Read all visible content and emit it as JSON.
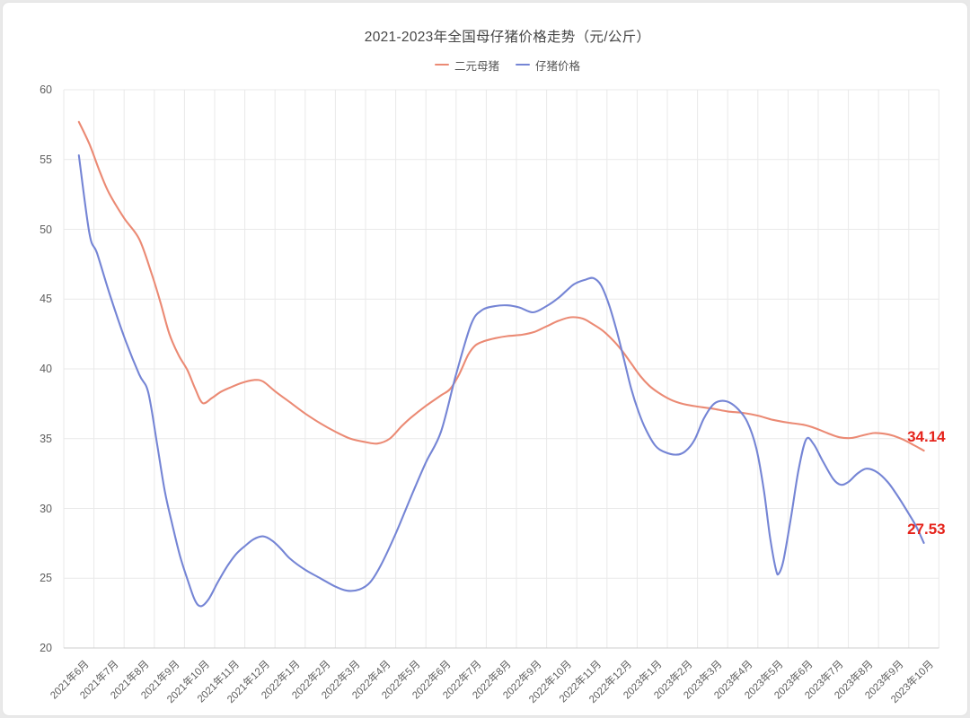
{
  "title": "2021-2023年全国母仔猪价格走势（元/公斤）",
  "colors": {
    "page_background": "#e9e9e9",
    "card_background": "#ffffff",
    "grid_line": "#e9e9e9",
    "axis_line": "#cccccc",
    "tick_text": "#5e5e5e",
    "title_text": "#464646",
    "end_label_text": "#e5231b",
    "series_sow": "#eb8a74",
    "series_piglet": "#7585d5"
  },
  "legend": {
    "items": [
      {
        "label": "二元母猪",
        "color": "#eb8a74"
      },
      {
        "label": "仔猪价格",
        "color": "#7585d5"
      }
    ]
  },
  "chart_data": {
    "type": "line",
    "title": "2021-2023年全国母仔猪价格走势（元/公斤）",
    "xlabel": "",
    "ylabel": "",
    "ylim": [
      20,
      60
    ],
    "y_ticks": [
      20,
      25,
      30,
      35,
      40,
      45,
      50,
      55,
      60
    ],
    "grid": true,
    "legend_position": "top",
    "smooth": true,
    "x_labels": [
      "2021年6月",
      "2021年7月",
      "2021年8月",
      "2021年9月",
      "2021年10月",
      "2021年11月",
      "2021年12月",
      "2022年1月",
      "2022年2月",
      "2022年3月",
      "2022年4月",
      "2022年5月",
      "2022年6月",
      "2022年7月",
      "2022年8月",
      "2022年9月",
      "2022年10月",
      "2022年11月",
      "2022年12月",
      "2023年1月",
      "2023年2月",
      "2023年3月",
      "2023年4月",
      "2023年5月",
      "2023年6月",
      "2023年7月",
      "2023年8月",
      "2023年9月",
      "2023年10月"
    ],
    "series": [
      {
        "name": "二元母猪",
        "color": "#eb8a74",
        "end_label": "34.14",
        "monthly_values": [
          57.7,
          52.6,
          49.3,
          42.5,
          37.6,
          38.65,
          39.15,
          37.6,
          36.1,
          35.0,
          34.75,
          36.5,
          38.1,
          41.6,
          42.3,
          42.6,
          43.65,
          43.25,
          41.3,
          38.6,
          37.5,
          37.15,
          36.85,
          36.35,
          36.0,
          35.15,
          35.25,
          35.2,
          34.14
        ],
        "detail_points": [
          [
            0,
            57.7
          ],
          [
            0.35,
            56.1
          ],
          [
            0.7,
            54.1
          ],
          [
            1,
            52.6
          ],
          [
            1.5,
            50.8
          ],
          [
            2,
            49.3
          ],
          [
            2.4,
            46.9
          ],
          [
            2.7,
            44.8
          ],
          [
            3,
            42.5
          ],
          [
            3.3,
            41.0
          ],
          [
            3.6,
            39.9
          ],
          [
            3.85,
            38.6
          ],
          [
            4.1,
            37.55
          ],
          [
            4.4,
            37.9
          ],
          [
            4.7,
            38.35
          ],
          [
            5,
            38.65
          ],
          [
            5.4,
            39.0
          ],
          [
            5.8,
            39.2
          ],
          [
            6.1,
            39.1
          ],
          [
            6.5,
            38.4
          ],
          [
            7,
            37.6
          ],
          [
            7.5,
            36.8
          ],
          [
            8,
            36.1
          ],
          [
            8.5,
            35.5
          ],
          [
            9,
            35.0
          ],
          [
            9.5,
            34.75
          ],
          [
            9.9,
            34.65
          ],
          [
            10.3,
            35.0
          ],
          [
            10.7,
            35.9
          ],
          [
            11,
            36.5
          ],
          [
            11.5,
            37.35
          ],
          [
            12,
            38.1
          ],
          [
            12.3,
            38.55
          ],
          [
            12.6,
            39.6
          ],
          [
            12.9,
            41.0
          ],
          [
            13.15,
            41.7
          ],
          [
            13.45,
            42.0
          ],
          [
            13.8,
            42.2
          ],
          [
            14.2,
            42.35
          ],
          [
            14.7,
            42.45
          ],
          [
            15.1,
            42.65
          ],
          [
            15.5,
            43.05
          ],
          [
            15.9,
            43.45
          ],
          [
            16.3,
            43.7
          ],
          [
            16.7,
            43.6
          ],
          [
            17,
            43.25
          ],
          [
            17.35,
            42.75
          ],
          [
            17.7,
            42.05
          ],
          [
            18,
            41.3
          ],
          [
            18.3,
            40.4
          ],
          [
            18.6,
            39.5
          ],
          [
            18.9,
            38.8
          ],
          [
            19.2,
            38.3
          ],
          [
            19.6,
            37.8
          ],
          [
            20,
            37.5
          ],
          [
            20.5,
            37.3
          ],
          [
            21,
            37.15
          ],
          [
            21.5,
            36.95
          ],
          [
            22,
            36.85
          ],
          [
            22.5,
            36.65
          ],
          [
            23,
            36.35
          ],
          [
            23.5,
            36.15
          ],
          [
            24,
            36.0
          ],
          [
            24.4,
            35.75
          ],
          [
            24.8,
            35.4
          ],
          [
            25.2,
            35.1
          ],
          [
            25.6,
            35.05
          ],
          [
            26,
            35.25
          ],
          [
            26.35,
            35.4
          ],
          [
            26.7,
            35.35
          ],
          [
            27,
            35.2
          ],
          [
            27.35,
            34.9
          ],
          [
            27.7,
            34.5
          ],
          [
            28,
            34.14
          ]
        ]
      },
      {
        "name": "仔猪价格",
        "color": "#7585d5",
        "end_label": "27.53",
        "monthly_values": [
          55.3,
          45.5,
          39.6,
          29.5,
          23.1,
          26.0,
          28.0,
          26.4,
          25.0,
          24.1,
          25.9,
          30.8,
          35.5,
          43.2,
          44.5,
          44.1,
          45.3,
          46.5,
          41.2,
          34.5,
          34.05,
          37.4,
          36.5,
          26.3,
          34.9,
          32.1,
          32.8,
          31.0,
          27.53
        ],
        "detail_points": [
          [
            0,
            55.3
          ],
          [
            0.35,
            49.7
          ],
          [
            0.6,
            48.3
          ],
          [
            1,
            45.5
          ],
          [
            1.5,
            42.3
          ],
          [
            2,
            39.6
          ],
          [
            2.3,
            38.3
          ],
          [
            2.6,
            34.5
          ],
          [
            2.85,
            31.2
          ],
          [
            3.1,
            28.8
          ],
          [
            3.35,
            26.6
          ],
          [
            3.6,
            24.9
          ],
          [
            3.85,
            23.4
          ],
          [
            4.05,
            23.0
          ],
          [
            4.3,
            23.5
          ],
          [
            4.6,
            24.7
          ],
          [
            4.9,
            25.8
          ],
          [
            5.2,
            26.7
          ],
          [
            5.5,
            27.3
          ],
          [
            5.8,
            27.8
          ],
          [
            6.1,
            28.0
          ],
          [
            6.4,
            27.7
          ],
          [
            6.7,
            27.1
          ],
          [
            7,
            26.4
          ],
          [
            7.5,
            25.6
          ],
          [
            8,
            25.0
          ],
          [
            8.5,
            24.4
          ],
          [
            8.9,
            24.1
          ],
          [
            9.3,
            24.2
          ],
          [
            9.65,
            24.7
          ],
          [
            10,
            25.9
          ],
          [
            10.5,
            28.2
          ],
          [
            11,
            30.8
          ],
          [
            11.5,
            33.3
          ],
          [
            12,
            35.5
          ],
          [
            12.5,
            39.6
          ],
          [
            13,
            43.2
          ],
          [
            13.35,
            44.2
          ],
          [
            13.8,
            44.5
          ],
          [
            14.2,
            44.55
          ],
          [
            14.6,
            44.4
          ],
          [
            15.05,
            44.05
          ],
          [
            15.5,
            44.5
          ],
          [
            15.9,
            45.1
          ],
          [
            16.4,
            46.05
          ],
          [
            16.8,
            46.4
          ],
          [
            17.05,
            46.5
          ],
          [
            17.3,
            46.0
          ],
          [
            17.55,
            44.7
          ],
          [
            17.8,
            42.9
          ],
          [
            18.05,
            40.8
          ],
          [
            18.3,
            38.6
          ],
          [
            18.55,
            36.9
          ],
          [
            18.8,
            35.6
          ],
          [
            19.1,
            34.5
          ],
          [
            19.4,
            34.05
          ],
          [
            19.8,
            33.85
          ],
          [
            20.1,
            34.1
          ],
          [
            20.4,
            34.9
          ],
          [
            20.7,
            36.4
          ],
          [
            21,
            37.4
          ],
          [
            21.25,
            37.7
          ],
          [
            21.55,
            37.6
          ],
          [
            21.85,
            37.1
          ],
          [
            22.15,
            36.2
          ],
          [
            22.45,
            34.3
          ],
          [
            22.7,
            31.3
          ],
          [
            22.9,
            28.0
          ],
          [
            23.1,
            25.6
          ],
          [
            23.2,
            25.35
          ],
          [
            23.35,
            26.3
          ],
          [
            23.6,
            29.4
          ],
          [
            23.85,
            32.8
          ],
          [
            24.1,
            34.95
          ],
          [
            24.35,
            34.6
          ],
          [
            24.65,
            33.4
          ],
          [
            25,
            32.1
          ],
          [
            25.25,
            31.7
          ],
          [
            25.5,
            31.9
          ],
          [
            25.8,
            32.5
          ],
          [
            26.1,
            32.85
          ],
          [
            26.45,
            32.6
          ],
          [
            26.8,
            31.9
          ],
          [
            27.1,
            31.0
          ],
          [
            27.45,
            29.8
          ],
          [
            27.75,
            28.7
          ],
          [
            28,
            27.53
          ]
        ]
      }
    ]
  }
}
